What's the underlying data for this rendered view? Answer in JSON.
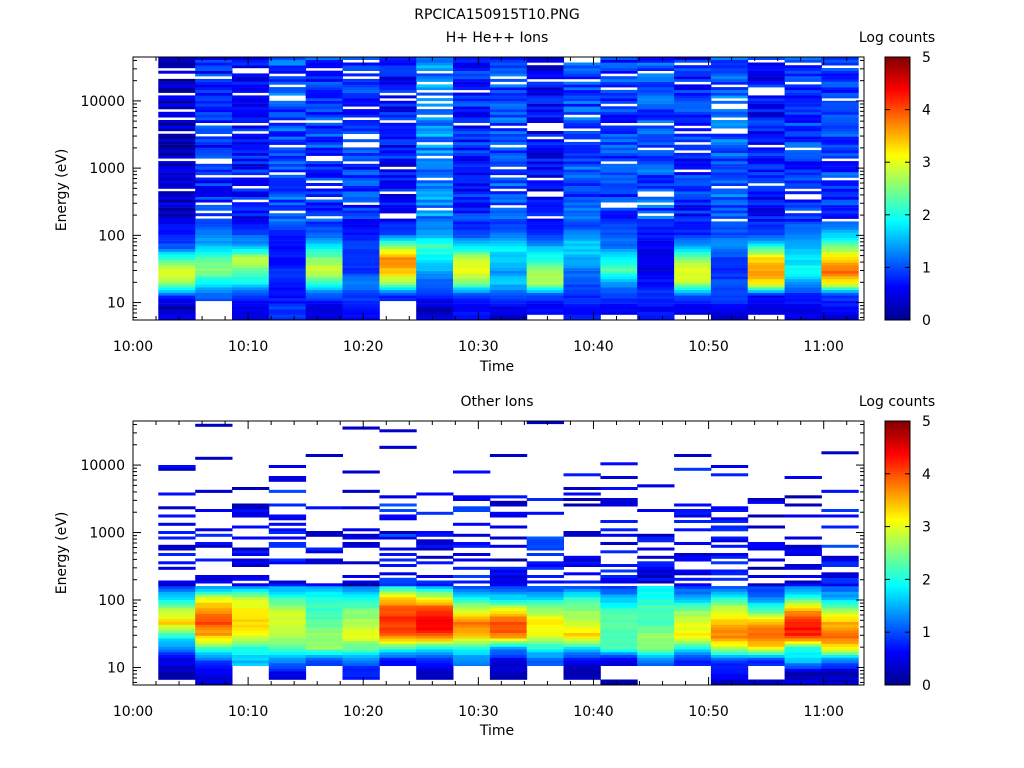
{
  "figure_title": "RPCICA150915T10.PNG",
  "chart_data": [
    {
      "type": "heatmap",
      "title": "H+ He++ Ions",
      "xlabel": "Time",
      "ylabel": "Energy (eV)",
      "colorbar_label": "Log counts",
      "colorbar_ticks": [
        "0",
        "1",
        "2",
        "3",
        "4",
        "5"
      ],
      "z_range": [
        0,
        5
      ],
      "y_scale": "log",
      "ylim": [
        5.5,
        45000
      ],
      "y_ticks": [
        {
          "value": 10,
          "label": "10"
        },
        {
          "value": 100,
          "label": "100"
        },
        {
          "value": 1000,
          "label": "1000"
        },
        {
          "value": 10000,
          "label": "10000"
        }
      ],
      "x_ticks": [
        "10:00",
        "10:10",
        "10:20",
        "10:30",
        "10:40",
        "10:50",
        "11:00"
      ],
      "time_range_minutes": [
        0,
        63.5
      ],
      "time_bins": 19,
      "bin_start_minutes": 2.2,
      "bin_width_minutes": 3.2,
      "columns": [
        {
          "low": [
            0.6,
            0.2,
            0.9,
            2.6,
            3.0,
            2.2,
            1.0,
            0.8,
            0.6
          ],
          "high": 0.3
        },
        {
          "low": [
            null,
            null,
            1.1,
            1.8,
            2.6,
            2.3,
            1.6,
            1.2,
            1.0
          ],
          "high": 0.8
        },
        {
          "low": [
            0.5,
            0.5,
            0.9,
            1.8,
            2.4,
            2.8,
            1.5,
            1.0,
            0.7
          ],
          "high": 0.7
        },
        {
          "low": [
            0.9,
            0.9,
            0.6,
            0.7,
            0.8,
            0.7,
            0.6,
            0.8,
            1.0
          ],
          "high": 1.0
        },
        {
          "low": [
            0.4,
            0.5,
            1.0,
            2.2,
            2.9,
            2.5,
            1.8,
            1.1,
            0.8
          ],
          "high": 0.9
        },
        {
          "low": [
            0.7,
            0.7,
            0.9,
            1.3,
            0.8,
            0.9,
            1.0,
            0.7,
            0.6
          ],
          "high": 0.9
        },
        {
          "low": [
            null,
            null,
            0.8,
            2.6,
            3.4,
            3.8,
            2.6,
            1.0,
            0.8
          ],
          "high": 0.7
        },
        {
          "low": [
            0.5,
            0.3,
            0.9,
            1.1,
            1.4,
            1.8,
            2.2,
            1.5,
            1.2
          ],
          "high": 1.3
        },
        {
          "low": [
            0.8,
            0.5,
            0.9,
            2.4,
            3.1,
            2.8,
            1.8,
            0.9,
            0.7
          ],
          "high": 0.8
        },
        {
          "low": [
            0.3,
            0.5,
            0.9,
            1.6,
            1.4,
            1.6,
            1.9,
            1.2,
            0.9
          ],
          "high": 1.0
        },
        {
          "low": [
            null,
            0.6,
            0.9,
            2.8,
            2.6,
            2.0,
            1.5,
            0.9,
            0.6
          ],
          "high": 0.6
        },
        {
          "low": [
            0.7,
            0.7,
            0.8,
            1.0,
            1.2,
            1.5,
            1.7,
            1.3,
            0.9
          ],
          "high": 1.0
        },
        {
          "low": [
            null,
            0.6,
            1.0,
            1.3,
            2.3,
            1.8,
            1.2,
            1.0,
            1.0
          ],
          "high": 0.9
        },
        {
          "low": [
            0.8,
            0.6,
            0.9,
            0.7,
            0.5,
            0.5,
            0.6,
            0.7,
            0.9
          ],
          "high": 1.0
        },
        {
          "low": [
            null,
            0.6,
            1.0,
            2.8,
            3.0,
            2.6,
            1.5,
            0.8,
            0.7
          ],
          "high": 0.8
        },
        {
          "low": [
            0.3,
            0.7,
            0.9,
            1.0,
            0.8,
            0.9,
            1.4,
            1.0,
            1.0
          ],
          "high": 1.1
        },
        {
          "low": [
            null,
            0.4,
            0.7,
            3.3,
            3.6,
            3.3,
            2.0,
            0.9,
            0.8
          ],
          "high": 0.7
        },
        {
          "low": [
            0.6,
            0.5,
            0.8,
            1.3,
            2.0,
            1.7,
            1.5,
            1.2,
            1.0
          ],
          "high": 0.9
        },
        {
          "low": [
            0.4,
            0.7,
            0.9,
            3.1,
            3.9,
            3.3,
            2.4,
            1.6,
            1.1
          ],
          "high": 0.9
        }
      ]
    },
    {
      "type": "heatmap",
      "title": "Other Ions",
      "xlabel": "Time",
      "ylabel": "Energy (eV)",
      "colorbar_label": "Log counts",
      "colorbar_ticks": [
        "0",
        "1",
        "2",
        "3",
        "4",
        "5"
      ],
      "z_range": [
        0,
        5
      ],
      "y_scale": "log",
      "ylim": [
        5.5,
        45000
      ],
      "y_ticks": [
        {
          "value": 10,
          "label": "10"
        },
        {
          "value": 100,
          "label": "100"
        },
        {
          "value": 1000,
          "label": "1000"
        },
        {
          "value": 10000,
          "label": "10000"
        }
      ],
      "x_ticks": [
        "10:00",
        "10:10",
        "10:20",
        "10:30",
        "10:40",
        "10:50",
        "11:00"
      ],
      "time_range_minutes": [
        0,
        63.5
      ],
      "time_bins": 19,
      "bin_start_minutes": 2.2,
      "bin_width_minutes": 3.2,
      "columns": [
        {
          "low": [
            null,
            0.3,
            0.5,
            1.2,
            2.0,
            3.3,
            2.8,
            1.8,
            1.0
          ],
          "high": 0.3
        },
        {
          "low": [
            0.3,
            0.6,
            1.0,
            2.2,
            3.5,
            4.0,
            3.7,
            3.0,
            1.2
          ],
          "high": 0.4
        },
        {
          "low": [
            null,
            null,
            1.6,
            2.0,
            3.0,
            3.3,
            3.2,
            2.8,
            1.4
          ],
          "high": 0.3
        },
        {
          "low": [
            null,
            0.5,
            1.4,
            2.2,
            2.8,
            3.0,
            2.8,
            2.2,
            1.4
          ],
          "high": 0.5
        },
        {
          "low": [
            null,
            null,
            1.0,
            2.6,
            2.6,
            2.4,
            2.2,
            2.0,
            1.5
          ],
          "high": 0.4
        },
        {
          "low": [
            null,
            0.7,
            1.2,
            2.4,
            3.0,
            2.8,
            2.5,
            2.0,
            1.2
          ],
          "high": 0.2
        },
        {
          "low": [
            null,
            null,
            0.6,
            2.2,
            3.8,
            4.2,
            4.0,
            3.5,
            1.8
          ],
          "high": 0.6
        },
        {
          "low": [
            null,
            0.3,
            0.8,
            2.0,
            4.0,
            4.5,
            4.2,
            3.2,
            1.5
          ],
          "high": 0.4
        },
        {
          "low": [
            null,
            null,
            1.2,
            2.0,
            3.4,
            3.8,
            3.0,
            2.0,
            1.0
          ],
          "high": 0.5
        },
        {
          "low": [
            null,
            0.3,
            0.5,
            1.4,
            3.8,
            4.1,
            3.2,
            1.8,
            0.9
          ],
          "high": 0.3
        },
        {
          "low": [
            null,
            null,
            1.0,
            2.0,
            3.0,
            3.3,
            2.7,
            1.8,
            0.9
          ],
          "high": 0.6
        },
        {
          "low": [
            null,
            0.3,
            0.5,
            1.8,
            3.4,
            2.8,
            2.6,
            2.2,
            1.0
          ],
          "high": 0.3
        },
        {
          "low": [
            0.2,
            null,
            0.4,
            2.2,
            2.2,
            2.4,
            2.2,
            1.6,
            0.8
          ],
          "high": 0.4
        },
        {
          "low": [
            null,
            null,
            1.2,
            2.6,
            2.6,
            2.2,
            2.3,
            2.0,
            1.8
          ],
          "high": 0.3
        },
        {
          "low": [
            null,
            null,
            0.7,
            2.0,
            3.2,
            3.0,
            2.6,
            1.5,
            1.0
          ],
          "high": 0.4
        },
        {
          "low": [
            0.3,
            0.6,
            0.9,
            2.8,
            3.8,
            3.4,
            3.0,
            2.2,
            0.9
          ],
          "high": 0.4
        },
        {
          "low": [
            0.3,
            null,
            0.8,
            3.2,
            4.0,
            3.6,
            2.4,
            1.3,
            0.9
          ],
          "high": 0.2
        },
        {
          "low": [
            0.5,
            0.3,
            1.7,
            2.0,
            4.2,
            4.3,
            3.6,
            2.2,
            1.2
          ],
          "high": 0.3
        },
        {
          "low": [
            0.4,
            0.3,
            1.2,
            3.2,
            3.9,
            3.5,
            2.8,
            1.6,
            1.0
          ],
          "high": 0.5
        }
      ]
    }
  ]
}
